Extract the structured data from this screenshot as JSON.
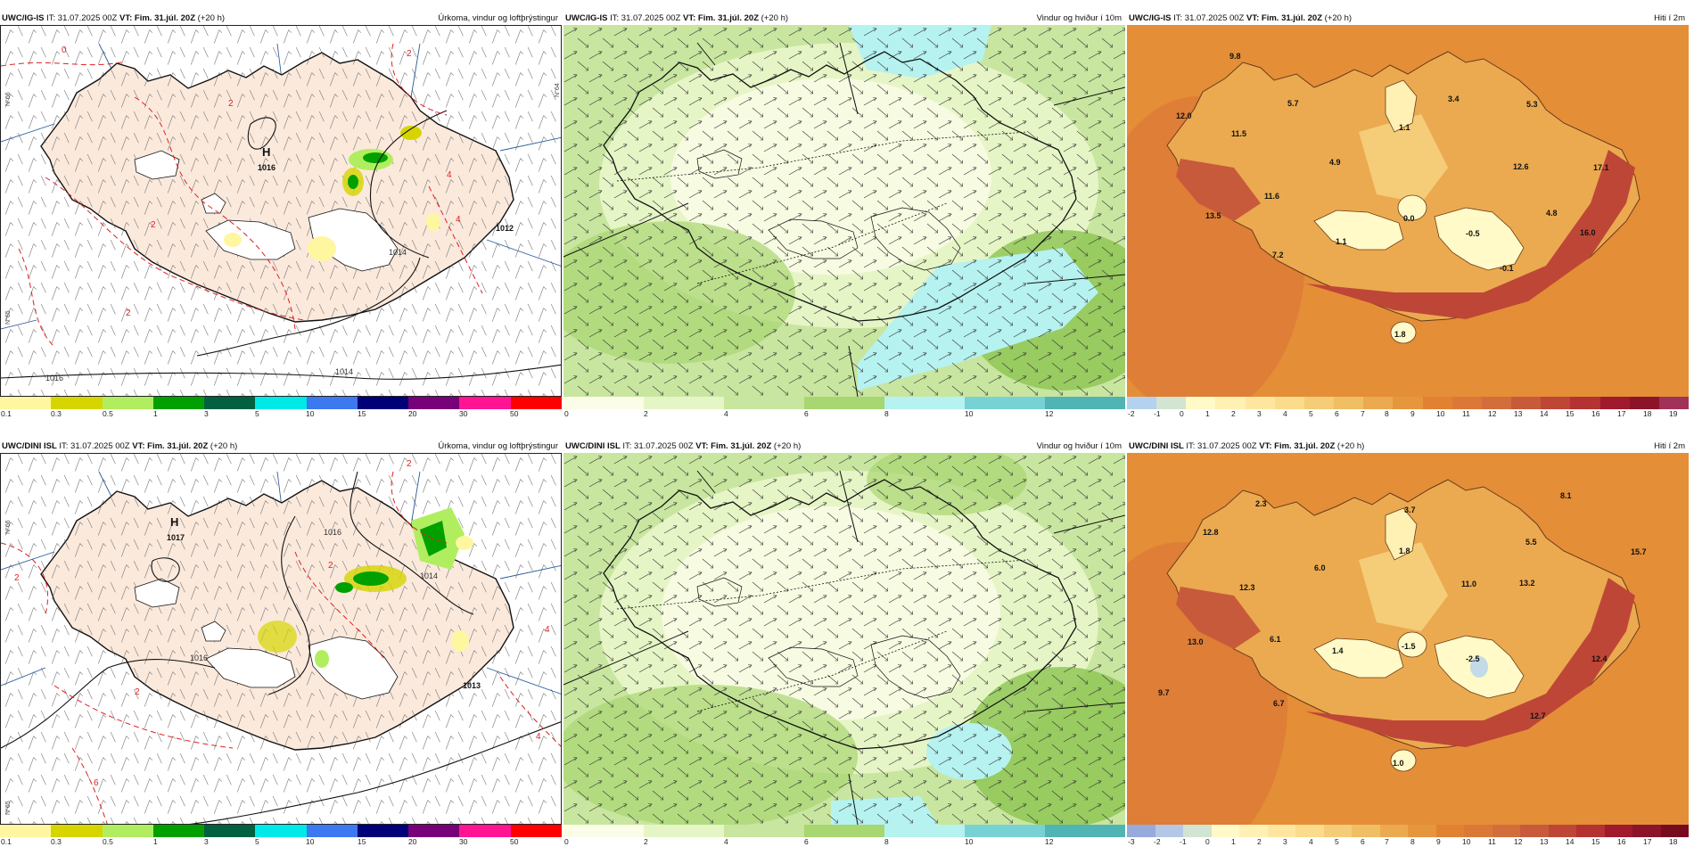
{
  "colors": {
    "land_precip": "#fbe9dc",
    "precip_scale": [
      "#fff7a0",
      "#d6d500",
      "#b0ee60",
      "#00a000",
      "#006040",
      "#00e8e8",
      "#3c78f0",
      "#000078",
      "#780078",
      "#ff1493",
      "#ff0000"
    ],
    "wind_scale": [
      "#fbfde8",
      "#e6f5c6",
      "#c8e6a0",
      "#a8d670",
      "#8cc450",
      "#b6f2f0",
      "#78d2d4",
      "#50b4b4"
    ],
    "temp_scale_top": [
      "#b4d2f0",
      "#d2e4d2",
      "#fffac8",
      "#fff0b4",
      "#ffe6a0",
      "#fadc8c",
      "#f5cd78",
      "#f0be64",
      "#ebaa50",
      "#e6963c",
      "#e18232",
      "#dc7837",
      "#d26e3c",
      "#c85a3c",
      "#be4637",
      "#b43232",
      "#a0192d",
      "#8c1428",
      "#a0325a"
    ],
    "temp_scale_bottom": [
      "#96aadc",
      "#b4c8e6",
      "#d2e4d2",
      "#fffac8",
      "#fff0b4",
      "#ffe6a0",
      "#fadc8c",
      "#f5cd78",
      "#f0be64",
      "#ebaa50",
      "#e6963c",
      "#e18232",
      "#dc7837",
      "#d26e3c",
      "#c85a3c",
      "#be4637",
      "#b43232",
      "#a0192d",
      "#8c1428",
      "#780a1e"
    ]
  },
  "panels": {
    "p1": {
      "model": "UWC/IG-IS",
      "it": "IT: 31.07.2025 00Z",
      "vt": "VT: Fim. 31.júl. 20Z",
      "lead": "(+20 h)",
      "product": "Úrkoma, vindur og loftþrýstingur"
    },
    "p2": {
      "model": "UWC/IG-IS",
      "it": "IT: 31.07.2025 00Z",
      "vt": "VT: Fim. 31.júl. 20Z",
      "lead": "(+20 h)",
      "product": "Vindur og hviður í 10m"
    },
    "p3": {
      "model": "UWC/IG-IS",
      "it": "IT: 31.07.2025 00Z",
      "vt": "VT: Fim. 31.júl. 20Z",
      "lead": "(+20 h)",
      "product": "Hiti í 2m"
    },
    "p4": {
      "model": "UWC/DINI ISL",
      "it": "IT: 31.07.2025 00Z",
      "vt": "VT: Fim. 31.júl. 20Z",
      "lead": "(+20 h)",
      "product": "Úrkoma, vindur og loftþrýstingur"
    },
    "p5": {
      "model": "UWC/DINI ISL",
      "it": "IT: 31.07.2025 00Z",
      "vt": "VT: Fim. 31.júl. 20Z",
      "lead": "(+20 h)",
      "product": "Vindur og hviður í 10m"
    },
    "p6": {
      "model": "UWC/DINI ISL",
      "it": "IT: 31.07.2025 00Z",
      "vt": "VT: Fim. 31.júl. 20Z",
      "lead": "(+20 h)",
      "product": "Hiti í 2m"
    }
  },
  "scales": {
    "precip": [
      "0.1",
      "0.3",
      "0.5",
      "1",
      "3",
      "5",
      "10",
      "15",
      "20",
      "30",
      "50"
    ],
    "wind": [
      "0",
      "2",
      "4",
      "6",
      "8",
      "10",
      "12"
    ],
    "temp_top": [
      "-2",
      "-1",
      "0",
      "1",
      "2",
      "3",
      "4",
      "5",
      "6",
      "7",
      "8",
      "9",
      "10",
      "11",
      "12",
      "13",
      "14",
      "15",
      "16",
      "17",
      "18",
      "19"
    ],
    "temp_bottom": [
      "-3",
      "-2",
      "-1",
      "0",
      "1",
      "2",
      "3",
      "4",
      "5",
      "6",
      "7",
      "8",
      "9",
      "10",
      "11",
      "12",
      "13",
      "14",
      "15",
      "16",
      "17",
      "18"
    ]
  },
  "pressure": {
    "top": {
      "high_letter": "H",
      "high_value": "1016",
      "labels": [
        "1014",
        "1012",
        "1014",
        "1016"
      ],
      "red_labels": [
        "0",
        "2",
        "2",
        "2",
        "4",
        "4",
        "2"
      ]
    },
    "bottom": {
      "high_letter": "H",
      "high_value": "1017",
      "labels": [
        "1016",
        "1016",
        "1014",
        "1013"
      ],
      "red_labels": [
        "2",
        "2",
        "2",
        "4",
        "4",
        "6",
        "2"
      ]
    }
  },
  "lat_labels": [
    "N°66",
    "N°65",
    "N°64"
  ],
  "temps_top": [
    "9.8",
    "12.0",
    "11.5",
    "5.7",
    "1.1",
    "3.4",
    "5.3",
    "4.9",
    "12.6",
    "17.1",
    "11.6",
    "13.5",
    "0.0",
    "4.8",
    "-0.5",
    "1.1",
    "7.2",
    "16.0",
    "-0.1",
    "1.8"
  ],
  "temps_bottom": [
    "2.3",
    "3.7",
    "8.1",
    "12.8",
    "1.8",
    "5.5",
    "6.0",
    "15.7",
    "12.3",
    "11.0",
    "13.2",
    "13.0",
    "6.1",
    "1.4",
    "-1.5",
    "-2.5",
    "12.4",
    "9.7",
    "6.7",
    "12.7",
    "1.0"
  ]
}
